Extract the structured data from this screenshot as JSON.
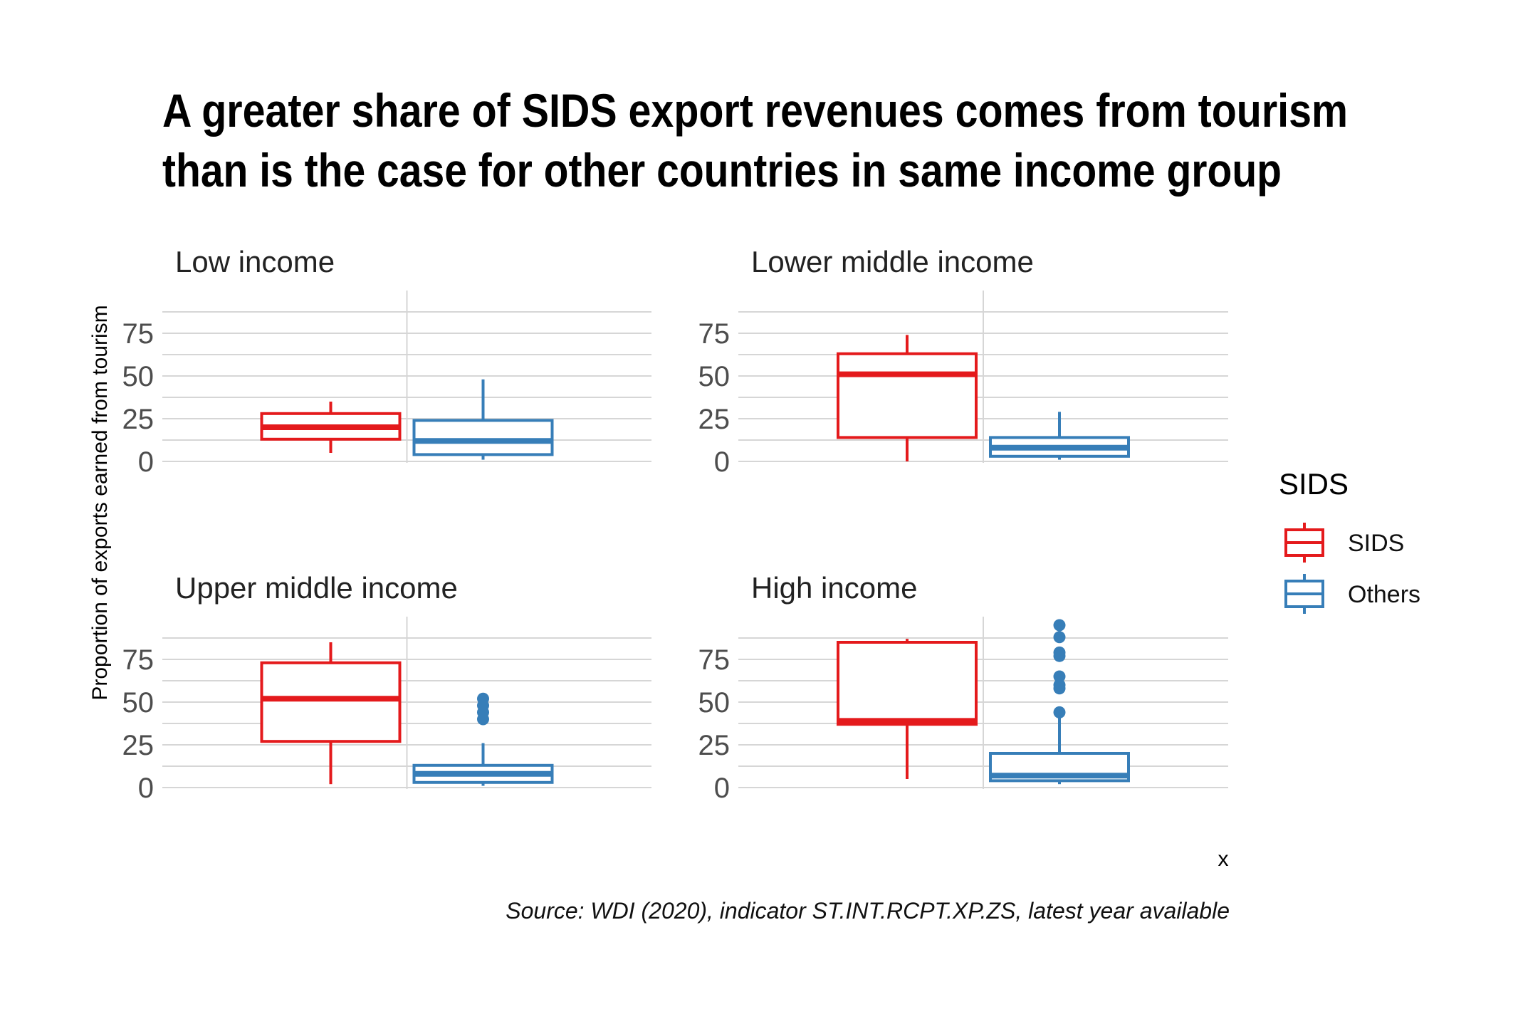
{
  "title_line1": "A greater share of SIDS export revenues comes from tourism",
  "title_line2": "than is the case for other countries in same income group",
  "caption": "Source: WDI (2020), indicator ST.INT.RCPT.XP.ZS, latest year available",
  "colors": {
    "SIDS": "#e41a1c",
    "Others": "#377eb8"
  },
  "chart_data": {
    "type": "boxplot",
    "ylabel": "Proportion of exports earned from tourism",
    "xlabel": "x",
    "ylim": [
      0,
      100
    ],
    "yticks": [
      0,
      25,
      50,
      75
    ],
    "legend": {
      "title": "SIDS",
      "entries": [
        "SIDS",
        "Others"
      ],
      "position": "right"
    },
    "facets": [
      {
        "name": "Low income",
        "boxes": [
          {
            "group": "SIDS",
            "whisker_low": 5,
            "q1": 13,
            "median": 20,
            "q3": 28,
            "whisker_high": 35,
            "outliers": []
          },
          {
            "group": "Others",
            "whisker_low": 1,
            "q1": 4,
            "median": 12,
            "q3": 24,
            "whisker_high": 48,
            "outliers": []
          }
        ]
      },
      {
        "name": "Lower middle income",
        "boxes": [
          {
            "group": "SIDS",
            "whisker_low": 0,
            "q1": 14,
            "median": 51,
            "q3": 63,
            "whisker_high": 74,
            "outliers": []
          },
          {
            "group": "Others",
            "whisker_low": 1,
            "q1": 3,
            "median": 8,
            "q3": 14,
            "whisker_high": 29,
            "outliers": []
          }
        ]
      },
      {
        "name": "Upper middle income",
        "boxes": [
          {
            "group": "SIDS",
            "whisker_low": 2,
            "q1": 27,
            "median": 52,
            "q3": 73,
            "whisker_high": 85,
            "outliers": []
          },
          {
            "group": "Others",
            "whisker_low": 1,
            "q1": 3,
            "median": 8,
            "q3": 13,
            "whisker_high": 26,
            "outliers": [
              40,
              44,
              48,
              52
            ]
          }
        ]
      },
      {
        "name": "High income",
        "boxes": [
          {
            "group": "SIDS",
            "whisker_low": 5,
            "q1": 37,
            "median": 39,
            "q3": 85,
            "whisker_high": 87,
            "outliers": []
          },
          {
            "group": "Others",
            "whisker_low": 2,
            "q1": 4,
            "median": 7,
            "q3": 20,
            "whisker_high": 44,
            "outliers": [
              44,
              58,
              60,
              65,
              77,
              79,
              88,
              95
            ]
          }
        ]
      }
    ]
  }
}
